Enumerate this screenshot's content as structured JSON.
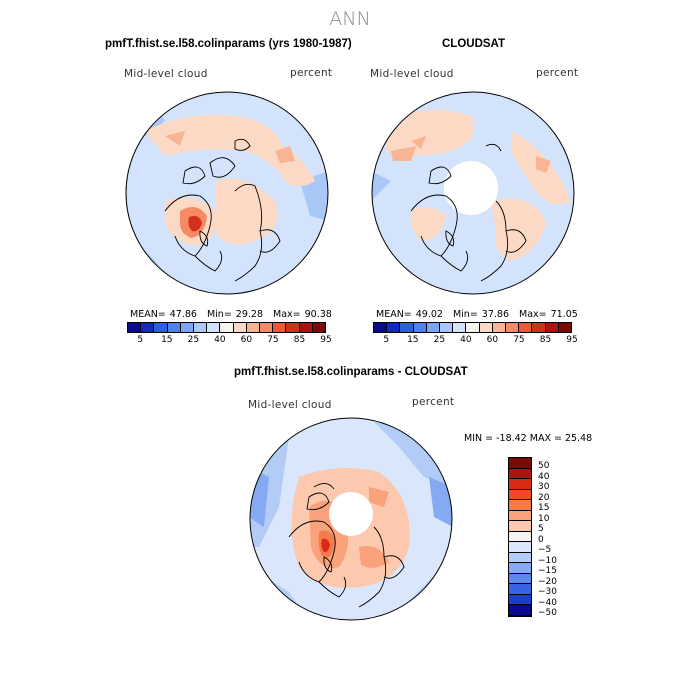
{
  "main_title": "ANN",
  "panels": {
    "model": {
      "title": "pmfT.fhist.se.l58.colinparams (yrs 1980-1987)",
      "left_label": "Mid-level cloud",
      "right_label": "percent",
      "mean_label": "MEAN=",
      "mean": "47.86",
      "min_label": "Min=",
      "min": "29.28",
      "max_label": "Max=",
      "max": "90.38"
    },
    "obs": {
      "title": "CLOUDSAT",
      "left_label": "Mid-level cloud",
      "right_label": "percent",
      "mean_label": "MEAN=",
      "mean": "49.02",
      "min_label": "Min=",
      "min": "37.86",
      "max_label": "Max=",
      "max": "71.05"
    },
    "diff": {
      "title": "pmfT.fhist.se.l58.colinparams - CLOUDSAT",
      "left_label": "Mid-level cloud",
      "right_label": "percent",
      "minmax": "MIN = -18.42  MAX =  25.48"
    }
  },
  "colorbar_abs": {
    "colors": [
      "#0a0a8c",
      "#1428c8",
      "#2b5de6",
      "#4d82f0",
      "#7aa6f4",
      "#a9c8f8",
      "#d2e3fb",
      "#f5f5f0",
      "#fcd9c4",
      "#f9b494",
      "#f48a66",
      "#ea5a35",
      "#d2301a",
      "#aa1410",
      "#7a0a08"
    ],
    "tick_labels": [
      "5",
      "15",
      "25",
      "40",
      "60",
      "75",
      "85",
      "95"
    ]
  },
  "colorbar_diff": {
    "colors": [
      "#7a0a08",
      "#b01410",
      "#d82a14",
      "#f04a22",
      "#f57a4c",
      "#f9a27c",
      "#fcc8ae",
      "#f6f3ee",
      "#d9e6fb",
      "#b3ccf7",
      "#86aaf2",
      "#5e86ec",
      "#3a62e4",
      "#1a3ccf",
      "#0a0a8c"
    ],
    "tick_labels": [
      "50",
      "40",
      "30",
      "20",
      "15",
      "10",
      "5",
      "0",
      "−5",
      "−10",
      "−15",
      "−20",
      "−30",
      "−40",
      "−50"
    ]
  },
  "map": {
    "projection": "north polar stereographic",
    "model_field": "mid-level cloud fraction, mostly light blue with light orange over Arctic, red maximum over western Canada",
    "obs_field": "mid-level cloud fraction, light blue/orange with missing data at pole",
    "diff_field": "difference, orange over Arctic ocean, red over western Canada, blue near outer edge"
  }
}
